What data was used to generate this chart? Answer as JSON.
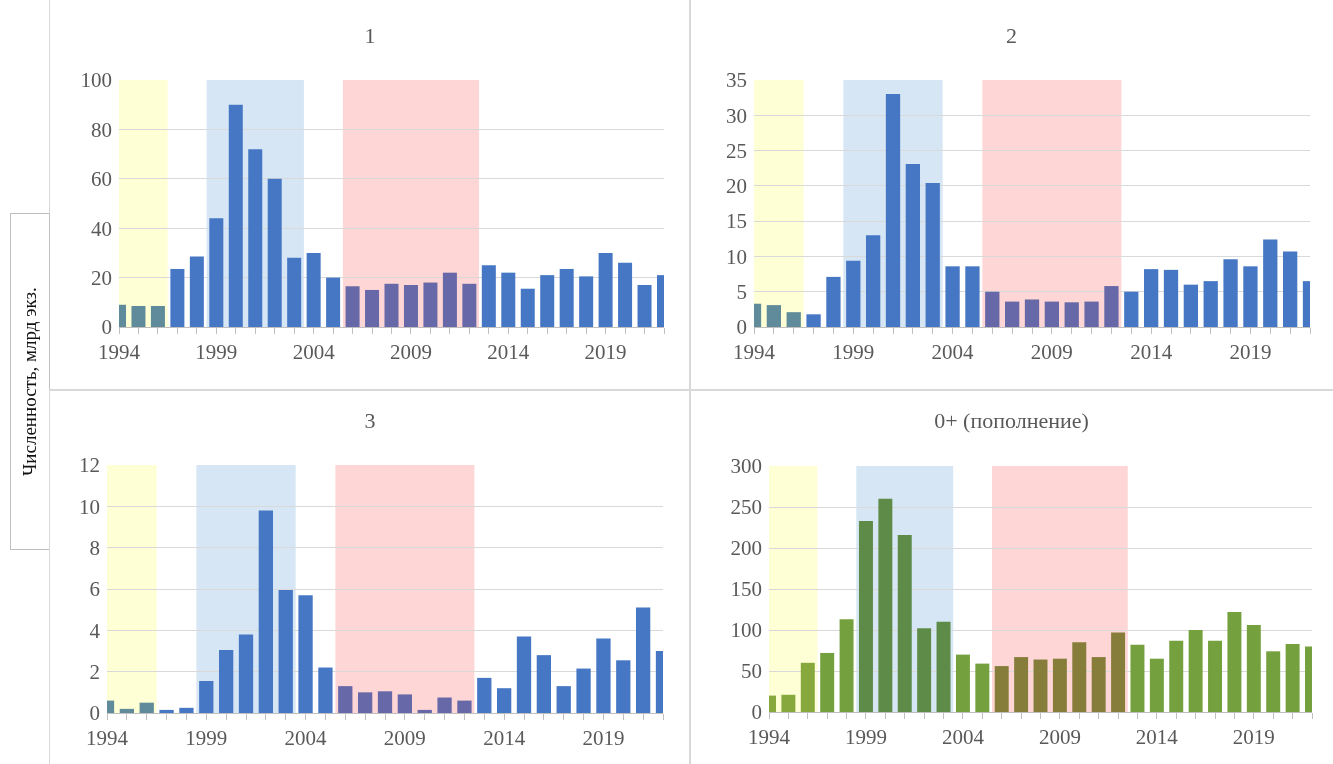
{
  "chart_data": [
    {
      "type": "bar",
      "title": "1",
      "ylabel": "Численность, млрд экз.",
      "x": [
        1994,
        1995,
        1996,
        1997,
        1998,
        1999,
        2000,
        2001,
        2002,
        2003,
        2004,
        2005,
        2006,
        2007,
        2008,
        2009,
        2010,
        2011,
        2012,
        2013,
        2014,
        2015,
        2016,
        2017,
        2018,
        2019,
        2020,
        2021,
        2022
      ],
      "values": [
        9,
        8.5,
        8.5,
        23.5,
        28.5,
        44,
        90,
        72,
        60,
        28,
        30,
        20,
        16.5,
        15,
        17.5,
        17,
        18,
        22,
        17.5,
        25,
        22,
        15.5,
        21,
        23.5,
        20.5,
        30,
        26,
        17,
        21
      ],
      "colors": [
        "#5f8b9b",
        "#5f8b9b",
        "#5f8b9b",
        "#4677c4",
        "#4677c4",
        "#4677c4",
        "#4677c4",
        "#4677c4",
        "#4677c4",
        "#4677c4",
        "#4677c4",
        "#4677c4",
        "#6768a8",
        "#6768a8",
        "#6768a8",
        "#6768a8",
        "#6768a8",
        "#6768a8",
        "#6768a8",
        "#4677c4",
        "#4677c4",
        "#4677c4",
        "#4677c4",
        "#4677c4",
        "#4677c4",
        "#4677c4",
        "#4677c4",
        "#4677c4",
        "#4677c4"
      ],
      "xlim": [
        1994,
        2022
      ],
      "xticks": [
        1994,
        1999,
        2004,
        2009,
        2014,
        2019
      ],
      "ylim": [
        0,
        100
      ],
      "yticks": [
        0,
        20,
        40,
        60,
        80,
        100
      ],
      "grid": "y",
      "bands": [
        {
          "axis": "x",
          "from": 1994,
          "to": 1996.5,
          "color": "#ffffd5"
        },
        {
          "axis": "x",
          "from": 1998.5,
          "to": 2003.5,
          "color": "#d6e6f5"
        },
        {
          "axis": "x",
          "from": 2005.5,
          "to": 2012.5,
          "color": "#ffd6d6"
        }
      ]
    },
    {
      "type": "bar",
      "title": "2",
      "x": [
        1994,
        1995,
        1996,
        1997,
        1998,
        1999,
        2000,
        2001,
        2002,
        2003,
        2004,
        2005,
        2006,
        2007,
        2008,
        2009,
        2010,
        2011,
        2012,
        2013,
        2014,
        2015,
        2016,
        2017,
        2018,
        2019,
        2020,
        2021,
        2022
      ],
      "values": [
        3.3,
        3.1,
        2.1,
        1.8,
        7.1,
        9.4,
        13,
        33,
        23.1,
        20.4,
        8.6,
        8.6,
        5,
        3.6,
        3.9,
        3.6,
        3.5,
        3.6,
        5.8,
        5,
        8.2,
        8.1,
        6,
        6.5,
        9.6,
        8.6,
        12.4,
        10.7,
        6.5
      ],
      "colors": [
        "#5f8b9b",
        "#5f8b9b",
        "#5f8b9b",
        "#4677c4",
        "#4677c4",
        "#4677c4",
        "#4677c4",
        "#4677c4",
        "#4677c4",
        "#4677c4",
        "#4677c4",
        "#4677c4",
        "#6768a8",
        "#6768a8",
        "#6768a8",
        "#6768a8",
        "#6768a8",
        "#6768a8",
        "#6768a8",
        "#4677c4",
        "#4677c4",
        "#4677c4",
        "#4677c4",
        "#4677c4",
        "#4677c4",
        "#4677c4",
        "#4677c4",
        "#4677c4",
        "#4677c4"
      ],
      "xlim": [
        1994,
        2022
      ],
      "xticks": [
        1994,
        1999,
        2004,
        2009,
        2014,
        2019
      ],
      "ylim": [
        0,
        35
      ],
      "yticks": [
        0,
        5,
        10,
        15,
        20,
        25,
        30,
        35
      ],
      "grid": "y",
      "bands": [
        {
          "axis": "x",
          "from": 1994,
          "to": 1996.5,
          "color": "#ffffd5"
        },
        {
          "axis": "x",
          "from": 1998.5,
          "to": 2003.5,
          "color": "#d6e6f5"
        },
        {
          "axis": "x",
          "from": 2005.5,
          "to": 2012.5,
          "color": "#ffd6d6"
        }
      ]
    },
    {
      "type": "bar",
      "title": "3",
      "x": [
        1994,
        1995,
        1996,
        1997,
        1998,
        1999,
        2000,
        2001,
        2002,
        2003,
        2004,
        2005,
        2006,
        2007,
        2008,
        2009,
        2010,
        2011,
        2012,
        2013,
        2014,
        2015,
        2016,
        2017,
        2018,
        2019,
        2020,
        2021,
        2022
      ],
      "values": [
        0.6,
        0.2,
        0.5,
        0.15,
        0.25,
        1.55,
        3.05,
        3.8,
        9.8,
        5.95,
        5.7,
        2.2,
        1.3,
        1,
        1.05,
        0.9,
        0.15,
        0.75,
        0.6,
        1.7,
        1.2,
        3.7,
        2.8,
        1.3,
        2.15,
        3.6,
        2.55,
        5.1,
        3
      ],
      "colors": [
        "#5f8b9b",
        "#5f8b9b",
        "#5f8b9b",
        "#4677c4",
        "#4677c4",
        "#4677c4",
        "#4677c4",
        "#4677c4",
        "#4677c4",
        "#4677c4",
        "#4677c4",
        "#4677c4",
        "#6768a8",
        "#6768a8",
        "#6768a8",
        "#6768a8",
        "#6768a8",
        "#6768a8",
        "#6768a8",
        "#4677c4",
        "#4677c4",
        "#4677c4",
        "#4677c4",
        "#4677c4",
        "#4677c4",
        "#4677c4",
        "#4677c4",
        "#4677c4",
        "#4677c4"
      ],
      "xlim": [
        1994,
        2022
      ],
      "xticks": [
        1994,
        1999,
        2004,
        2009,
        2014,
        2019
      ],
      "ylim": [
        0,
        12
      ],
      "yticks": [
        0,
        2,
        4,
        6,
        8,
        10,
        12
      ],
      "grid": "y",
      "bands": [
        {
          "axis": "x",
          "from": 1994,
          "to": 1996.5,
          "color": "#ffffd5"
        },
        {
          "axis": "x",
          "from": 1998.5,
          "to": 2003.5,
          "color": "#d6e6f5"
        },
        {
          "axis": "x",
          "from": 2005.5,
          "to": 2012.5,
          "color": "#ffd6d6"
        }
      ]
    },
    {
      "type": "bar",
      "title": "0+ (пополнение)",
      "x": [
        1994,
        1995,
        1996,
        1997,
        1998,
        1999,
        2000,
        2001,
        2002,
        2003,
        2004,
        2005,
        2006,
        2007,
        2008,
        2009,
        2010,
        2011,
        2012,
        2013,
        2014,
        2015,
        2016,
        2017,
        2018,
        2019,
        2020,
        2021,
        2022
      ],
      "values": [
        20,
        21,
        60,
        72,
        113,
        233,
        260,
        216,
        102,
        110,
        70,
        59,
        56,
        67,
        64,
        65,
        85,
        67,
        97,
        82,
        65,
        87,
        100,
        87,
        122,
        106,
        74,
        83,
        80
      ],
      "colors": [
        "#86a83c",
        "#86a83c",
        "#86a83c",
        "#74a03d",
        "#74a03d",
        "#5e8c48",
        "#5e8c48",
        "#5e8c48",
        "#5e8c48",
        "#5e8c48",
        "#74a03d",
        "#74a03d",
        "#877d3b",
        "#877d3b",
        "#877d3b",
        "#877d3b",
        "#877d3b",
        "#877d3b",
        "#877d3b",
        "#74a03d",
        "#74a03d",
        "#74a03d",
        "#74a03d",
        "#74a03d",
        "#74a03d",
        "#74a03d",
        "#74a03d",
        "#74a03d",
        "#74a03d"
      ],
      "xlim": [
        1994,
        2022
      ],
      "xticks": [
        1994,
        1999,
        2004,
        2009,
        2014,
        2019
      ],
      "ylim": [
        0,
        300
      ],
      "yticks": [
        0,
        50,
        100,
        150,
        200,
        250,
        300
      ],
      "grid": "y",
      "bands": [
        {
          "axis": "x",
          "from": 1994,
          "to": 1996.5,
          "color": "#ffffd5"
        },
        {
          "axis": "x",
          "from": 1998.5,
          "to": 2003.5,
          "color": "#d6e6f5"
        },
        {
          "axis": "x",
          "from": 2005.5,
          "to": 2012.5,
          "color": "#ffd6d6"
        }
      ]
    }
  ]
}
